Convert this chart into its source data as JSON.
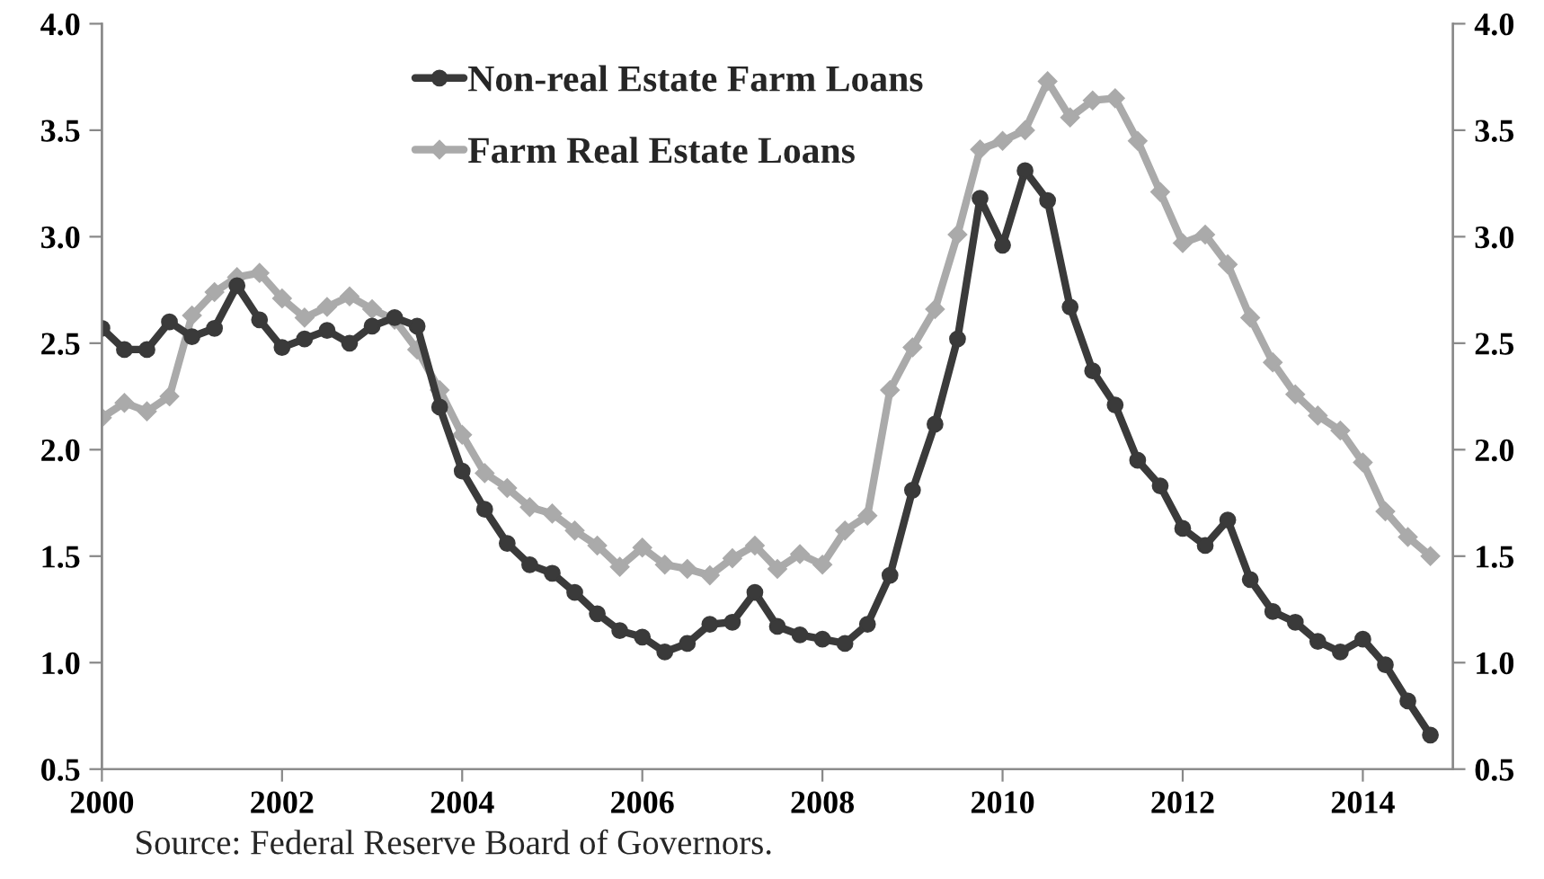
{
  "chart_data": {
    "type": "line",
    "x": [
      2000,
      2000.25,
      2000.5,
      2000.75,
      2001,
      2001.25,
      2001.5,
      2001.75,
      2002,
      2002.25,
      2002.5,
      2002.75,
      2003,
      2003.25,
      2003.5,
      2003.75,
      2004,
      2004.25,
      2004.5,
      2004.75,
      2005,
      2005.25,
      2005.5,
      2005.75,
      2006,
      2006.25,
      2006.5,
      2006.75,
      2007,
      2007.25,
      2007.5,
      2007.75,
      2008,
      2008.25,
      2008.5,
      2008.75,
      2009,
      2009.25,
      2009.5,
      2009.75,
      2010,
      2010.25,
      2010.5,
      2010.75,
      2011,
      2011.25,
      2011.5,
      2011.75,
      2012,
      2012.25,
      2012.5,
      2012.75,
      2013,
      2013.25,
      2013.5,
      2013.75,
      2014,
      2014.25,
      2014.5,
      2014.75
    ],
    "series": [
      {
        "name": "Non-real Estate Farm Loans",
        "color": "#3a3a3a",
        "marker": "circle",
        "values": [
          2.57,
          2.47,
          2.47,
          2.6,
          2.53,
          2.57,
          2.77,
          2.61,
          2.48,
          2.52,
          2.56,
          2.5,
          2.58,
          2.62,
          2.58,
          2.2,
          1.9,
          1.72,
          1.56,
          1.46,
          1.42,
          1.33,
          1.23,
          1.15,
          1.12,
          1.05,
          1.09,
          1.18,
          1.19,
          1.33,
          1.17,
          1.13,
          1.11,
          1.09,
          1.18,
          1.41,
          1.81,
          2.12,
          2.52,
          3.18,
          2.96,
          3.31,
          3.17,
          2.67,
          2.37,
          2.21,
          1.95,
          1.83,
          1.63,
          1.55,
          1.67,
          1.39,
          1.24,
          1.19,
          1.1,
          1.05,
          1.11,
          0.99,
          0.82,
          0.66
        ]
      },
      {
        "name": "Farm Real Estate Loans",
        "color": "#aaaaaa",
        "marker": "diamond",
        "values": [
          2.15,
          2.22,
          2.18,
          2.25,
          2.63,
          2.74,
          2.81,
          2.83,
          2.71,
          2.62,
          2.67,
          2.72,
          2.66,
          2.61,
          2.47,
          2.28,
          2.07,
          1.89,
          1.82,
          1.73,
          1.7,
          1.62,
          1.55,
          1.45,
          1.54,
          1.46,
          1.44,
          1.41,
          1.49,
          1.55,
          1.44,
          1.51,
          1.46,
          1.62,
          1.69,
          2.28,
          2.48,
          2.66,
          3.01,
          3.41,
          3.45,
          3.5,
          3.73,
          3.56,
          3.64,
          3.65,
          3.45,
          3.21,
          2.97,
          3.01,
          2.87,
          2.62,
          2.41,
          2.26,
          2.16,
          2.09,
          1.94,
          1.71,
          1.59,
          1.5
        ]
      }
    ],
    "xlim": [
      2000,
      2015
    ],
    "xticks": [
      2000,
      2002,
      2004,
      2006,
      2008,
      2010,
      2012,
      2014
    ],
    "ylim": [
      0.5,
      4.0
    ],
    "yticks": [
      {
        "value": 0.5,
        "label": "0.5"
      },
      {
        "value": 1.0,
        "label": "1.0"
      },
      {
        "value": 1.5,
        "label": "1.5"
      },
      {
        "value": 2.0,
        "label": "2.0"
      },
      {
        "value": 2.5,
        "label": "2.5"
      },
      {
        "value": 3.0,
        "label": "3.0"
      },
      {
        "value": 3.5,
        "label": "3.5"
      },
      {
        "value": 4.0,
        "label": "4.0"
      }
    ],
    "y2lim": [
      0.5,
      4.0
    ],
    "y2ticks": [
      {
        "value": 0.5,
        "label": "0.5"
      },
      {
        "value": 1.0,
        "label": "1.0"
      },
      {
        "value": 1.5,
        "label": "1.5"
      },
      {
        "value": 2.0,
        "label": "2.0"
      },
      {
        "value": 2.5,
        "label": "2.5"
      },
      {
        "value": 3.0,
        "label": "3.0"
      },
      {
        "value": 3.5,
        "label": "3.5"
      },
      {
        "value": 4.0,
        "label": "4.0"
      }
    ],
    "grid": false,
    "legend": "top",
    "line_style": "solid",
    "annotations": [
      "Source: Federal Reserve Board of Governors."
    ]
  }
}
